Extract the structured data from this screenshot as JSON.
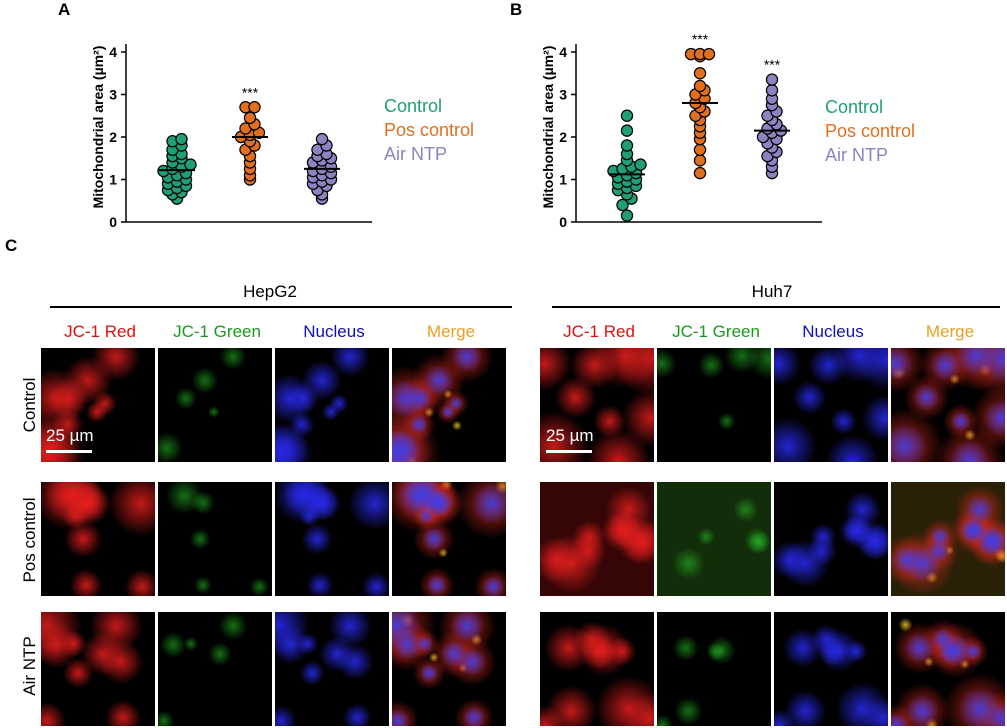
{
  "panels": {
    "a": "A",
    "b": "B",
    "c": "C"
  },
  "colors": {
    "control": "#1f9e77",
    "pos": "#e0701e",
    "air": "#8c83c0",
    "red": "#e01010",
    "green": "#1a9a1a",
    "blue": "#1010c0",
    "merge": "#e8a020"
  },
  "legend": {
    "control": "Control",
    "pos": "Pos control",
    "air": "Air NTP"
  },
  "chart_data": [
    {
      "type": "scatter",
      "ylabel": "Mitochondrial area (µm²)",
      "ylim": [
        0,
        4
      ],
      "yticks": [
        "0",
        "1",
        "2",
        "3",
        "4"
      ],
      "groups": [
        {
          "name": "Control",
          "mean": 1.22,
          "sig": "",
          "values": [
            0.55,
            0.65,
            0.7,
            0.75,
            0.8,
            0.85,
            0.9,
            0.95,
            1.0,
            1.05,
            1.1,
            1.15,
            1.2,
            1.25,
            1.3,
            1.35,
            1.4,
            1.5,
            1.55,
            1.6,
            1.7,
            1.8,
            1.9,
            1.95
          ]
        },
        {
          "name": "Pos control",
          "mean": 2.0,
          "sig": "***",
          "values": [
            1.0,
            1.1,
            1.25,
            1.4,
            1.55,
            1.7,
            1.8,
            1.9,
            2.0,
            2.05,
            2.1,
            2.2,
            2.3,
            2.45,
            2.7,
            2.7
          ]
        },
        {
          "name": "Air NTP",
          "mean": 1.25,
          "sig": "",
          "values": [
            0.55,
            0.65,
            0.75,
            0.85,
            0.9,
            0.95,
            1.0,
            1.05,
            1.1,
            1.15,
            1.2,
            1.25,
            1.3,
            1.4,
            1.45,
            1.5,
            1.55,
            1.6,
            1.7,
            1.8,
            1.95
          ]
        }
      ]
    },
    {
      "type": "scatter",
      "ylabel": "Mitochondrial area (µm²)",
      "ylim": [
        0,
        4
      ],
      "yticks": [
        "0",
        "1",
        "2",
        "3",
        "4"
      ],
      "groups": [
        {
          "name": "Control",
          "mean": 1.12,
          "sig": "",
          "values": [
            0.15,
            0.4,
            0.55,
            0.65,
            0.75,
            0.8,
            0.85,
            0.9,
            0.95,
            1.0,
            1.05,
            1.1,
            1.15,
            1.2,
            1.25,
            1.3,
            1.35,
            1.45,
            1.6,
            1.8,
            2.15,
            2.5
          ]
        },
        {
          "name": "Pos control",
          "mean": 2.8,
          "sig": "***",
          "values": [
            1.15,
            1.45,
            1.7,
            1.95,
            2.1,
            2.25,
            2.4,
            2.5,
            2.6,
            2.7,
            2.8,
            2.9,
            3.0,
            3.1,
            3.2,
            3.5,
            3.9,
            3.95,
            3.95,
            3.95
          ]
        },
        {
          "name": "Air NTP",
          "mean": 2.15,
          "sig": "***",
          "values": [
            1.15,
            1.3,
            1.45,
            1.55,
            1.65,
            1.75,
            1.85,
            1.95,
            2.0,
            2.1,
            2.15,
            2.2,
            2.3,
            2.4,
            2.5,
            2.6,
            2.75,
            2.9,
            3.1,
            3.35
          ]
        }
      ]
    }
  ],
  "micrographs": {
    "cell_lines": [
      "HepG2",
      "Huh7"
    ],
    "channels": [
      "JC-1 Red",
      "JC-1 Green",
      "Nucleus",
      "Merge"
    ],
    "rows": [
      "Control",
      "Pos control",
      "Air NTP"
    ],
    "scalebar": "25 µm"
  }
}
